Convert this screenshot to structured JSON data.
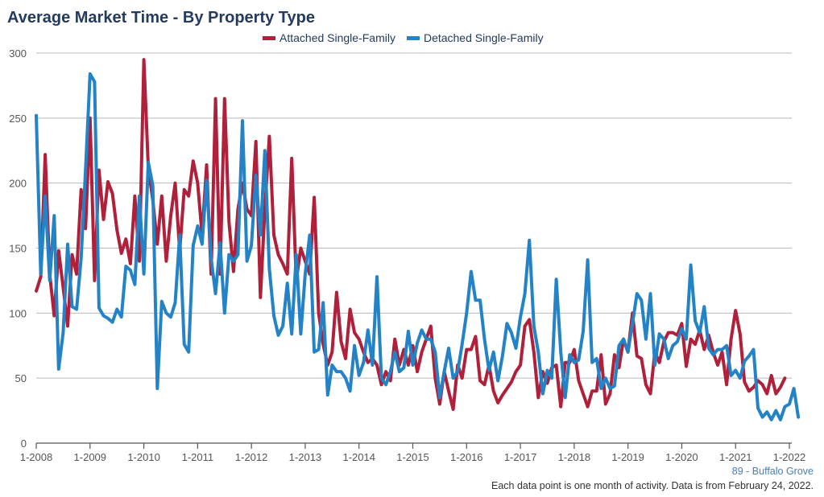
{
  "chart_data": {
    "type": "line",
    "title": "Average Market Time - By Property Type",
    "ylim": [
      0,
      300
    ],
    "yticks": [
      0,
      50,
      100,
      150,
      200,
      250,
      300
    ],
    "xticks": [
      "1-2008",
      "1-2009",
      "1-2010",
      "1-2011",
      "1-2012",
      "1-2013",
      "1-2014",
      "1-2015",
      "1-2016",
      "1-2017",
      "1-2018",
      "1-2019",
      "1-2020",
      "1-2021",
      "1-2022"
    ],
    "grid": true,
    "legend_position": "top",
    "series": [
      {
        "name": "Attached Single-Family",
        "color": "#b0203a",
        "values": [
          117,
          128,
          222,
          130,
          98,
          148,
          120,
          90,
          145,
          130,
          195,
          165,
          250,
          125,
          210,
          172,
          201,
          192,
          164,
          146,
          157,
          138,
          190,
          140,
          295,
          212,
          187,
          153,
          190,
          140,
          175,
          200,
          148,
          195,
          190,
          217,
          200,
          160,
          214,
          130,
          265,
          130,
          265,
          170,
          132,
          180,
          200,
          180,
          175,
          232,
          112,
          180,
          236,
          160,
          145,
          138,
          130,
          219,
          125,
          150,
          140,
          130,
          189,
          100,
          76,
          60,
          70,
          116,
          78,
          65,
          103,
          85,
          80,
          70,
          62,
          65,
          60,
          45,
          55,
          48,
          80,
          60,
          72,
          60,
          75,
          55,
          70,
          80,
          90,
          50,
          30,
          55,
          40,
          26,
          60,
          50,
          72,
          72,
          82,
          48,
          45,
          60,
          40,
          31,
          37,
          42,
          47,
          55,
          60,
          90,
          95,
          70,
          35,
          55,
          46,
          58,
          60,
          28,
          62,
          62,
          72,
          48,
          38,
          28,
          40,
          40,
          68,
          30,
          38,
          68,
          58,
          80,
          70,
          100,
          67,
          65,
          45,
          38,
          70,
          62,
          78,
          85,
          85,
          83,
          92,
          59,
          80,
          76,
          87,
          72,
          83,
          70,
          60,
          70,
          45,
          80,
          102,
          84,
          47,
          40,
          43,
          48,
          45,
          38,
          52,
          38,
          43,
          50
        ]
      },
      {
        "name": "Detached Single-Family",
        "color": "#2383c6",
        "values": [
          252,
          130,
          190,
          125,
          175,
          57,
          85,
          153,
          105,
          103,
          142,
          210,
          284,
          278,
          104,
          98,
          96,
          93,
          103,
          97,
          136,
          133,
          122,
          190,
          130,
          216,
          198,
          42,
          109,
          100,
          97,
          108,
          160,
          76,
          70,
          152,
          167,
          153,
          202,
          142,
          115,
          154,
          100,
          145,
          140,
          145,
          248,
          140,
          152,
          206,
          160,
          225,
          134,
          98,
          83,
          90,
          123,
          84,
          145,
          84,
          130,
          160,
          70,
          72,
          108,
          37,
          60,
          55,
          55,
          50,
          40,
          75,
          52,
          62,
          87,
          60,
          128,
          50,
          45,
          55,
          70,
          55,
          58,
          86,
          60,
          77,
          87,
          80,
          80,
          70,
          35,
          55,
          73,
          50,
          55,
          76,
          100,
          132,
          110,
          110,
          80,
          56,
          70,
          48,
          67,
          92,
          85,
          73,
          97,
          115,
          156,
          90,
          70,
          38,
          56,
          50,
          126,
          70,
          35,
          68,
          62,
          64,
          86,
          141,
          62,
          65,
          42,
          50,
          42,
          44,
          75,
          80,
          70,
          92,
          115,
          110,
          80,
          115,
          60,
          84,
          80,
          65,
          75,
          78,
          88,
          80,
          137,
          94,
          85,
          105,
          73,
          68,
          72,
          72,
          75,
          52,
          56,
          50,
          63,
          67,
          72,
          27,
          20,
          24,
          18,
          25,
          18,
          28,
          30,
          42,
          20
        ]
      }
    ]
  },
  "footer": {
    "location": "89 - Buffalo Grove",
    "note": "Each data point is one month of activity. Data is from February 24, 2022."
  }
}
